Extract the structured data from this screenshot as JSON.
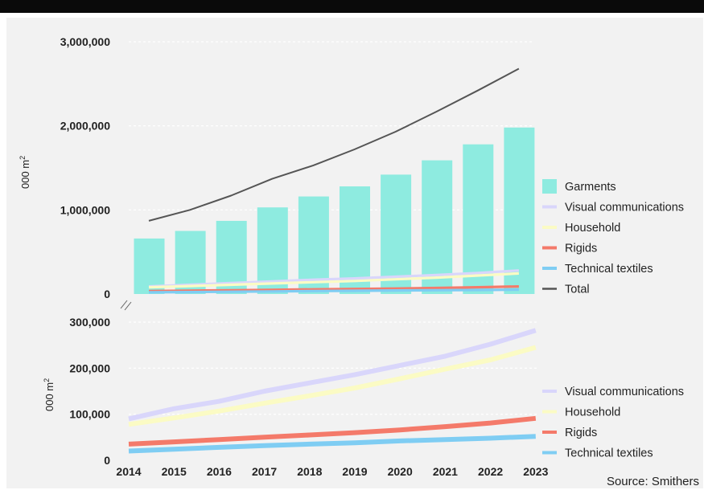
{
  "title": "",
  "source": "Source: Smithers",
  "colors": {
    "background": "#f2f2f2",
    "garments": "#8eebe0",
    "visual_communications": "#d9d6fb",
    "household": "#fbfbc4",
    "rigids": "#f47a6a",
    "technical_textiles": "#7fcdf3",
    "total": "#555555"
  },
  "chart_data": [
    {
      "type": "bar",
      "ylabel": "000 m",
      "ylabel_sup": "2",
      "ylim": [
        0,
        3000000
      ],
      "yticks": [
        "3,000,000",
        "2,000,000",
        "1,000,000",
        "0"
      ],
      "grid": true,
      "categories": [
        "2014",
        "2015",
        "2016",
        "2017",
        "2018",
        "2019",
        "2020",
        "2021",
        "2022",
        "2023"
      ],
      "series": [
        {
          "name": "Garments",
          "type": "bar",
          "values": [
            660000,
            750000,
            870000,
            1030000,
            1160000,
            1280000,
            1420000,
            1590000,
            1780000,
            1980000
          ]
        },
        {
          "name": "Visual communications",
          "type": "line",
          "values": [
            90000,
            110000,
            130000,
            150000,
            170000,
            185000,
            205000,
            225000,
            250000,
            280000
          ]
        },
        {
          "name": "Household",
          "type": "line",
          "values": [
            80000,
            95000,
            110000,
            125000,
            140000,
            155000,
            175000,
            195000,
            220000,
            245000
          ]
        },
        {
          "name": "Rigids",
          "type": "line",
          "values": [
            35000,
            40000,
            45000,
            50000,
            55000,
            60000,
            65000,
            72000,
            80000,
            90000
          ]
        },
        {
          "name": "Technical textiles",
          "type": "line",
          "values": [
            20000,
            23000,
            27000,
            31000,
            35000,
            38000,
            42000,
            45000,
            48000,
            52000
          ]
        },
        {
          "name": "Total",
          "type": "line",
          "values": [
            870000,
            1000000,
            1170000,
            1370000,
            1530000,
            1720000,
            1930000,
            2170000,
            2420000,
            2680000
          ]
        }
      ],
      "legend": "right"
    },
    {
      "type": "line",
      "ylabel": "000 m",
      "ylabel_sup": "2",
      "ylim": [
        0,
        300000
      ],
      "yticks": [
        "300,000",
        "200,000",
        "100,000",
        "0"
      ],
      "grid": true,
      "categories": [
        "2014",
        "2015",
        "2016",
        "2017",
        "2018",
        "2019",
        "2020",
        "2021",
        "2022",
        "2023"
      ],
      "series": [
        {
          "name": "Visual communications",
          "values": [
            90000,
            112000,
            128000,
            150000,
            168000,
            186000,
            206000,
            226000,
            252000,
            282000
          ]
        },
        {
          "name": "Household",
          "values": [
            78000,
            92000,
            107000,
            124000,
            140000,
            157000,
            177000,
            198000,
            218000,
            245000
          ]
        },
        {
          "name": "Rigids",
          "values": [
            35000,
            40000,
            45000,
            50000,
            55000,
            60000,
            66000,
            73000,
            81000,
            91000
          ]
        },
        {
          "name": "Technical textiles",
          "values": [
            20000,
            24000,
            28000,
            32000,
            35000,
            38000,
            42000,
            45000,
            48000,
            52000
          ]
        }
      ],
      "legend": "right"
    }
  ]
}
